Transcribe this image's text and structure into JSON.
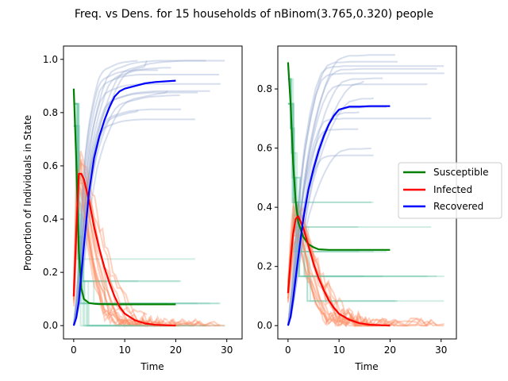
{
  "figure_title": "Freq. vs Dens. for 15 households of nBinom(3.765,0.320) people",
  "chart_data": [
    {
      "type": "line",
      "panel": "left",
      "xlabel": "Time",
      "ylabel": "Proportion of Individuals in State",
      "xlim": [
        -2,
        33
      ],
      "ylim": [
        -0.05,
        1.05
      ],
      "xticks": [
        0,
        10,
        20,
        30
      ],
      "yticks": [
        0.0,
        0.2,
        0.4,
        0.6,
        0.8,
        1.0
      ],
      "grid": false,
      "series": [
        {
          "name": "Susceptible",
          "color": "#008000",
          "x": [
            0,
            0.5,
            1,
            1.5,
            2,
            3,
            4,
            5,
            8,
            12,
            16,
            20
          ],
          "y": [
            0.89,
            0.62,
            0.28,
            0.14,
            0.1,
            0.085,
            0.082,
            0.081,
            0.08,
            0.08,
            0.08,
            0.08
          ]
        },
        {
          "name": "Infected",
          "color": "#ff0000",
          "x": [
            0,
            0.5,
            1,
            1.5,
            2,
            3,
            4,
            5,
            6,
            7,
            8,
            9,
            10,
            12,
            14,
            16,
            20
          ],
          "y": [
            0.11,
            0.35,
            0.57,
            0.57,
            0.55,
            0.47,
            0.37,
            0.29,
            0.22,
            0.16,
            0.11,
            0.07,
            0.045,
            0.02,
            0.008,
            0.003,
            0.0
          ]
        },
        {
          "name": "Recovered",
          "color": "#0000ff",
          "x": [
            0,
            0.5,
            1,
            2,
            3,
            4,
            5,
            6,
            7,
            8,
            9,
            10,
            12,
            14,
            16,
            20
          ],
          "y": [
            0.0,
            0.03,
            0.09,
            0.3,
            0.5,
            0.63,
            0.71,
            0.77,
            0.82,
            0.86,
            0.88,
            0.89,
            0.9,
            0.91,
            0.915,
            0.92
          ]
        }
      ]
    },
    {
      "type": "line",
      "panel": "right",
      "xlabel": "Time",
      "ylabel": "",
      "xlim": [
        -2,
        33
      ],
      "ylim": [
        -0.045,
        0.945
      ],
      "xticks": [
        0,
        10,
        20,
        30
      ],
      "yticks": [
        0.0,
        0.2,
        0.4,
        0.6,
        0.8
      ],
      "grid": false,
      "series": [
        {
          "name": "Susceptible",
          "color": "#008000",
          "x": [
            0,
            0.5,
            1,
            1.5,
            2,
            3,
            4,
            5,
            6,
            8,
            12,
            16,
            20
          ],
          "y": [
            0.89,
            0.75,
            0.55,
            0.42,
            0.35,
            0.3,
            0.275,
            0.265,
            0.258,
            0.256,
            0.256,
            0.256,
            0.256
          ]
        },
        {
          "name": "Infected",
          "color": "#ff0000",
          "x": [
            0,
            0.5,
            1,
            1.5,
            2,
            3,
            4,
            5,
            6,
            7,
            8,
            9,
            10,
            12,
            14,
            16,
            20
          ],
          "y": [
            0.11,
            0.22,
            0.31,
            0.36,
            0.37,
            0.33,
            0.27,
            0.21,
            0.16,
            0.12,
            0.085,
            0.06,
            0.04,
            0.02,
            0.008,
            0.003,
            0.0
          ]
        },
        {
          "name": "Recovered",
          "color": "#0000ff",
          "x": [
            0,
            0.5,
            1,
            2,
            3,
            4,
            5,
            6,
            7,
            8,
            9,
            10,
            12,
            14,
            16,
            20
          ],
          "y": [
            0.0,
            0.03,
            0.09,
            0.23,
            0.36,
            0.46,
            0.53,
            0.59,
            0.64,
            0.68,
            0.71,
            0.73,
            0.74,
            0.74,
            0.742,
            0.742
          ]
        }
      ]
    }
  ],
  "legend": {
    "placement": "right",
    "entries": [
      {
        "label": "Susceptible",
        "color": "#008000"
      },
      {
        "label": "Infected",
        "color": "#ff0000"
      },
      {
        "label": "Recovered",
        "color": "#0000ff"
      }
    ]
  },
  "background_trace_colors": {
    "susceptible": "#66c2a5",
    "infected": "#fc8d62",
    "recovered": "#8da0cb"
  }
}
